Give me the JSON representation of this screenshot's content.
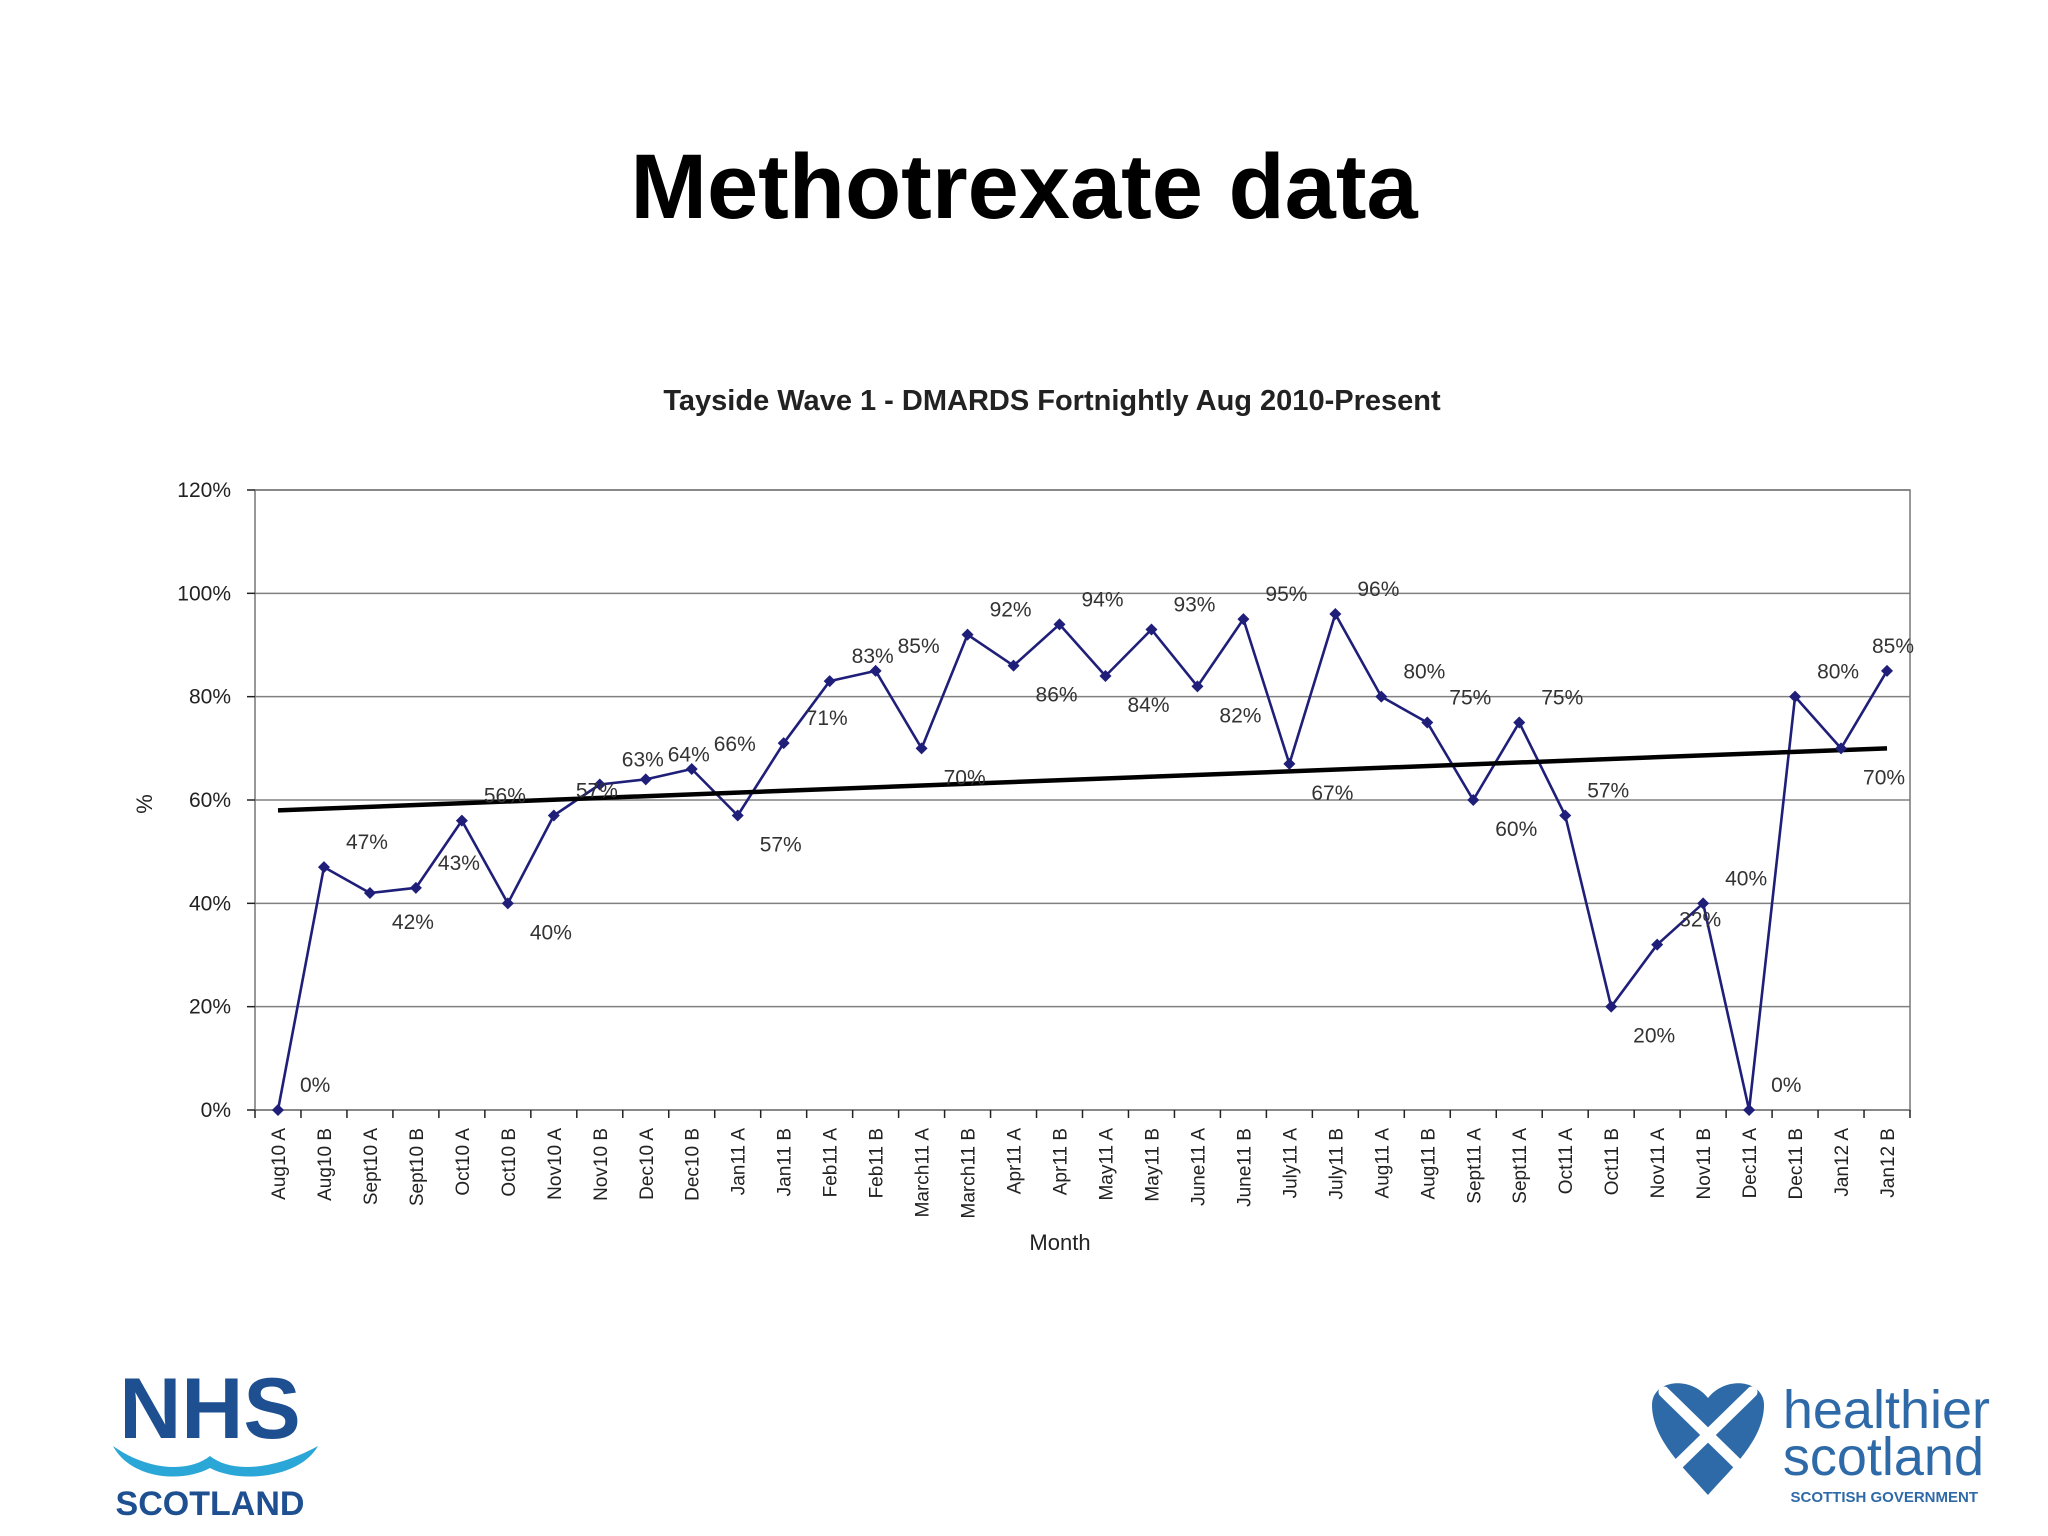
{
  "slide": {
    "title": "Methotrexate data"
  },
  "logos": {
    "nhs_main": "NHS",
    "nhs_sub": "SCOTLAND",
    "hs_line1": "healthier",
    "hs_line2": "scotland",
    "hs_sub": "SCOTTISH GOVERNMENT"
  },
  "colors": {
    "series": "#1f1f7a",
    "trend": "#000000",
    "grid": "#808080",
    "nhs_blue": "#1d4f91",
    "nhs_wave": "#2aa7d7",
    "hs_blue": "#2f6aa8"
  },
  "chart_data": {
    "type": "line",
    "title": "Tayside Wave 1 - DMARDS Fortnightly Aug 2010-Present",
    "xlabel": "Month",
    "ylabel": "%",
    "ylim": [
      0,
      120
    ],
    "yticks": [
      "0%",
      "20%",
      "40%",
      "60%",
      "80%",
      "100%",
      "120%"
    ],
    "grid": true,
    "legend": "none",
    "categories": [
      "Aug10 A",
      "Aug10 B",
      "Sept10 A",
      "Sept10 B",
      "Oct10 A",
      "Oct10 B",
      "Nov10 A",
      "Nov10 B",
      "Dec10 A",
      "Dec10 B",
      "Jan11 A",
      "Jan11 B",
      "Feb11 A",
      "Feb11 B",
      "March11 A",
      "March11 B",
      "Apr11 A",
      "Apr11 B",
      "May11 A",
      "May11 B",
      "June11 A",
      "June11 B",
      "July11 A",
      "July11 B",
      "Aug11 A",
      "Aug11 B",
      "Sept11 A",
      "Sept11 A",
      "Oct11 A",
      "Oct11 B",
      "Nov11 A",
      "Nov11 B",
      "Dec11 A",
      "Dec11 B",
      "Jan12 A",
      "Jan12 B"
    ],
    "series": [
      {
        "values": [
          0,
          47,
          42,
          43,
          56,
          40,
          57,
          63,
          64,
          66,
          57,
          71,
          83,
          85,
          70,
          92,
          86,
          94,
          84,
          93,
          82,
          95,
          67,
          96,
          80,
          75,
          60,
          75,
          57,
          20,
          32,
          40,
          0,
          80,
          70,
          85
        ],
        "labels": [
          "0%",
          "47%",
          "42%",
          "43%",
          "56%",
          "40%",
          "57%",
          "63%",
          "64%",
          "66%",
          "57%",
          "71%",
          "83%",
          "85%",
          "70%",
          "92%",
          "86%",
          "94%",
          "84%",
          "93%",
          "82%",
          "95%",
          "67%",
          "96%",
          "80%",
          "75%",
          "60%",
          "75%",
          "57%",
          "20%",
          "32%",
          "40%",
          "0%",
          "80%",
          "70%",
          "85%"
        ],
        "label_visible": [
          true,
          true,
          true,
          true,
          true,
          true,
          true,
          true,
          true,
          true,
          true,
          true,
          true,
          true,
          true,
          true,
          true,
          true,
          true,
          true,
          true,
          true,
          true,
          true,
          true,
          true,
          true,
          true,
          true,
          true,
          true,
          true,
          true,
          true,
          true,
          true
        ]
      }
    ],
    "trendline": {
      "type": "linear",
      "start": 58,
      "end": 70
    }
  }
}
